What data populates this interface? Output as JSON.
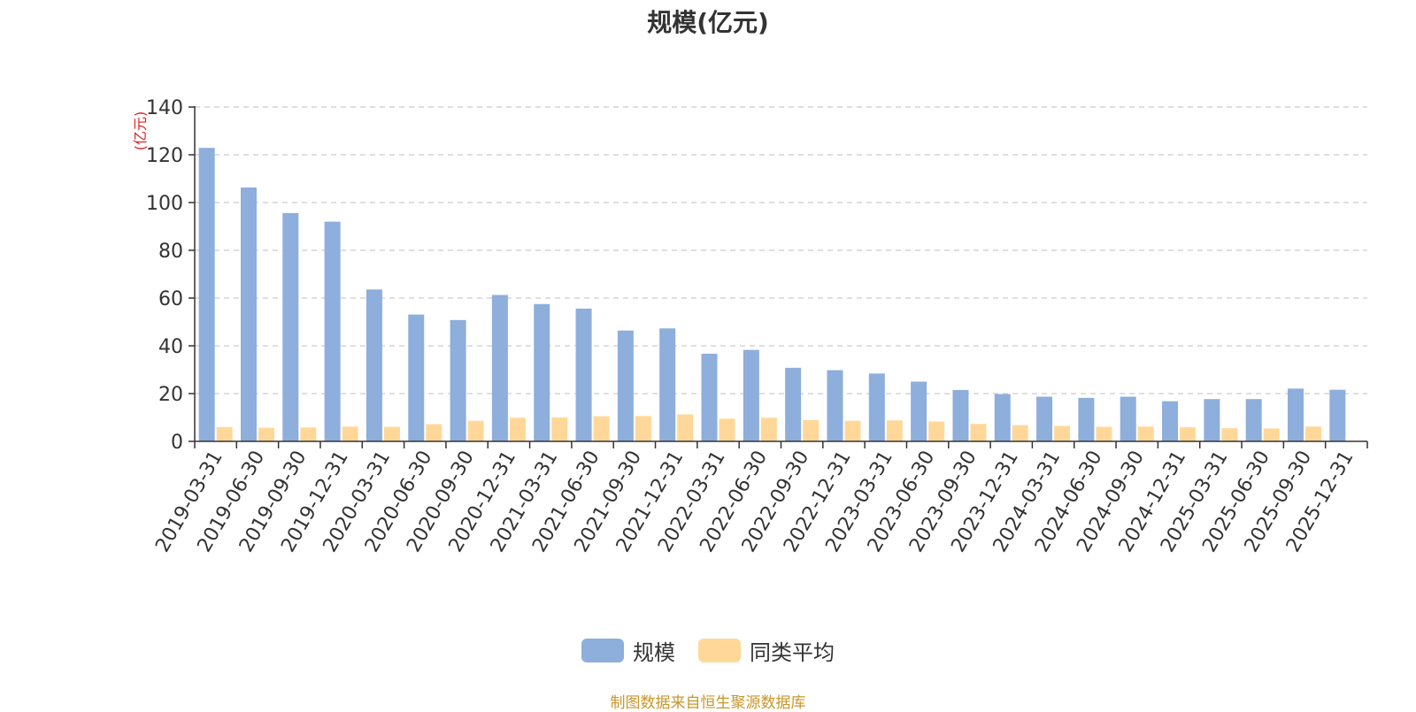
{
  "chart_data": {
    "type": "bar",
    "title": "规模(亿元)",
    "ylabel": "(亿元)",
    "xlabel": "",
    "ylim": [
      0,
      140
    ],
    "yticks": [
      0,
      20,
      40,
      60,
      80,
      100,
      120,
      140
    ],
    "grid": true,
    "legend_position": "bottom",
    "categories": [
      "2019-03-31",
      "2019-06-30",
      "2019-09-30",
      "2019-12-31",
      "2020-03-31",
      "2020-06-30",
      "2020-09-30",
      "2020-12-31",
      "2021-03-31",
      "2021-06-30",
      "2021-09-30",
      "2021-12-31",
      "2022-03-31",
      "2022-06-30",
      "2022-09-30",
      "2022-12-31",
      "2023-03-31",
      "2023-06-30",
      "2023-09-30",
      "2023-12-31",
      "2024-03-31",
      "2024-06-30",
      "2024-09-30",
      "2024-12-31",
      "2025-03-31",
      "2025-06-30",
      "2025-09-30",
      "2025-12-31"
    ],
    "series": [
      {
        "name": "规模",
        "color": "#8eaedb",
        "values": [
          122.9,
          106.3,
          95.6,
          92.0,
          63.6,
          53.1,
          50.8,
          61.3,
          57.5,
          55.6,
          46.4,
          47.3,
          36.7,
          38.3,
          30.8,
          29.8,
          28.4,
          25.0,
          21.5,
          19.8,
          18.7,
          18.2,
          18.7,
          16.8,
          17.7,
          17.7,
          22.1,
          21.6
        ]
      },
      {
        "name": "同类平均",
        "color": "#ffd899",
        "values": [
          6.0,
          5.7,
          5.8,
          6.2,
          6.1,
          7.2,
          8.6,
          9.9,
          10.0,
          10.5,
          10.6,
          11.3,
          9.5,
          9.9,
          8.9,
          8.6,
          8.8,
          8.3,
          7.3,
          6.8,
          6.5,
          6.1,
          6.2,
          5.9,
          5.5,
          5.4,
          6.2,
          null
        ]
      }
    ]
  },
  "source_note": "制图数据来自恒生聚源数据库"
}
